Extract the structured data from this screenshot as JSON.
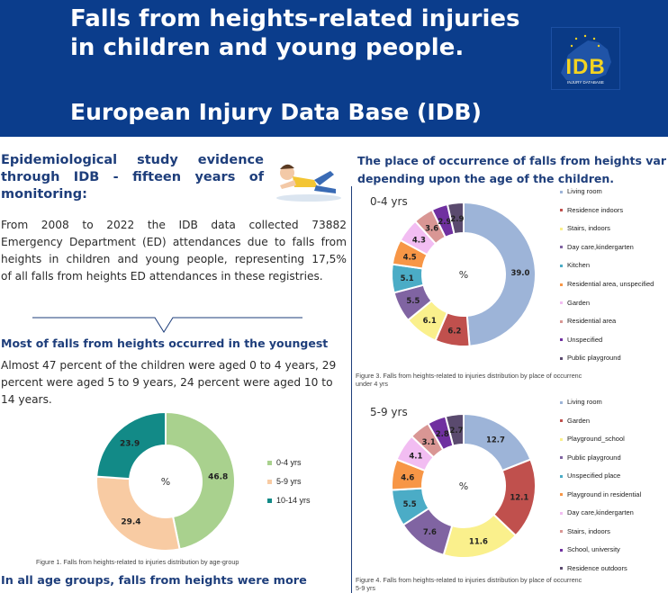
{
  "header": {
    "title_line1": "Falls from heights-related injuries",
    "title_line2": "in children and young people.",
    "subtitle": "European Injury Data Base (IDB)",
    "logo_text": "IDB",
    "logo_sub": "INJURY DATABASE"
  },
  "left": {
    "section1_heading": [
      "Epidemiological study evidence",
      "through IDB - fifteen years of",
      "monitoring:"
    ],
    "paragraph1": [
      "From 2008 to 2022 the IDB data collected 73882",
      "Emergency Department (ED) attendances due to falls from",
      "heights in children and young people, representing 17,5%",
      "of all falls from heights ED attendances in these registries."
    ],
    "section2_heading": "Most of falls from heights occurred in the youngest",
    "paragraph2": [
      "Almost 47 percent of the children were aged 0 to 4 years, 29",
      "percent were aged 5 to 9 years, 24 percent were aged 10 to",
      "14 years."
    ],
    "figure1_caption": "Figure 1. Falls from heights-related to injuries distribution by age-group",
    "section3_heading": "In all age groups, falls from heights were more"
  },
  "right": {
    "heading": [
      "The place of occurrence of falls from heights var",
      "depending upon the age of the children."
    ],
    "figure3_caption": [
      "Figure 3. Falls from heights-related to injuries distribution by place of occurrenc",
      "under 4 yrs"
    ],
    "figure4_caption": [
      "Figure 4. Falls from heights-related to injuries distribution by place of occurrenc",
      "5-9 yrs"
    ]
  },
  "icons": {
    "fall_illustration": "child-falling-icon"
  },
  "colors": {
    "header_bg": "#0b3d8c",
    "heading_blue": "#1e3e7b",
    "green": "#a9d18e",
    "peach": "#f8cba3",
    "teal": "#128a87"
  },
  "chart_data": [
    {
      "id": "figure1",
      "type": "pie",
      "donut": true,
      "center_label": "%",
      "categories": [
        "0-4 yrs",
        "5-9 yrs",
        "10-14 yrs"
      ],
      "values": [
        46.8,
        29.4,
        23.9
      ],
      "colors": [
        "#a9d18e",
        "#f8cba3",
        "#128a87"
      ],
      "legend": [
        "0-4 yrs",
        "5-9 yrs",
        "10-14 yrs"
      ],
      "legend_position": "right"
    },
    {
      "id": "figure3",
      "type": "pie",
      "donut": true,
      "center_label": "%",
      "title": "0-4 yrs",
      "categories": [
        "Living room",
        "Residence indoors",
        "Stairs, indoors",
        "Day care,kindergarten",
        "Kitchen",
        "Residential area, unspecified",
        "Garden",
        "Residential area",
        "Unspecified",
        "Public playground"
      ],
      "values": [
        39.0,
        6.2,
        6.1,
        5.5,
        5.1,
        4.5,
        4.3,
        3.6,
        2.9,
        2.9
      ],
      "colors": [
        "#9db4d8",
        "#c0504d",
        "#faf08c",
        "#8064a2",
        "#4bacc6",
        "#f79646",
        "#f2bdf2",
        "#d99694",
        "#7030a0",
        "#5a4a6e"
      ],
      "legend": [
        "Living room",
        "Residence indoors",
        "Stairs, indoors",
        "Day care,kindergarten",
        "Kitchen",
        "Residential area, unspecified",
        "Garden",
        "Residential area",
        "Unspecified",
        "Public playground"
      ],
      "legend_position": "right"
    },
    {
      "id": "figure4",
      "type": "pie",
      "donut": true,
      "center_label": "%",
      "title": "5-9 yrs",
      "categories": [
        "Living room",
        "Garden",
        "Playground_school",
        "Public playground",
        "Unspecified place",
        "Playground in residential",
        "Day care,kindergarten",
        "Stairs, indoors",
        "School, university",
        "Residence outdoors"
      ],
      "values": [
        12.7,
        12.1,
        11.6,
        7.6,
        5.5,
        4.6,
        4.1,
        3.1,
        2.8,
        2.7
      ],
      "colors": [
        "#9db4d8",
        "#c0504d",
        "#faf08c",
        "#8064a2",
        "#4bacc6",
        "#f79646",
        "#f2bdf2",
        "#d99694",
        "#7030a0",
        "#5a4a6e"
      ],
      "legend": [
        "Living room",
        "Garden",
        "Playground_school",
        "Public playground",
        "Unspecified place",
        "Playground in residential",
        "Day care,kindergarten",
        "Stairs, indoors",
        "School, university",
        "Residence outdoors"
      ],
      "legend_position": "right"
    }
  ]
}
